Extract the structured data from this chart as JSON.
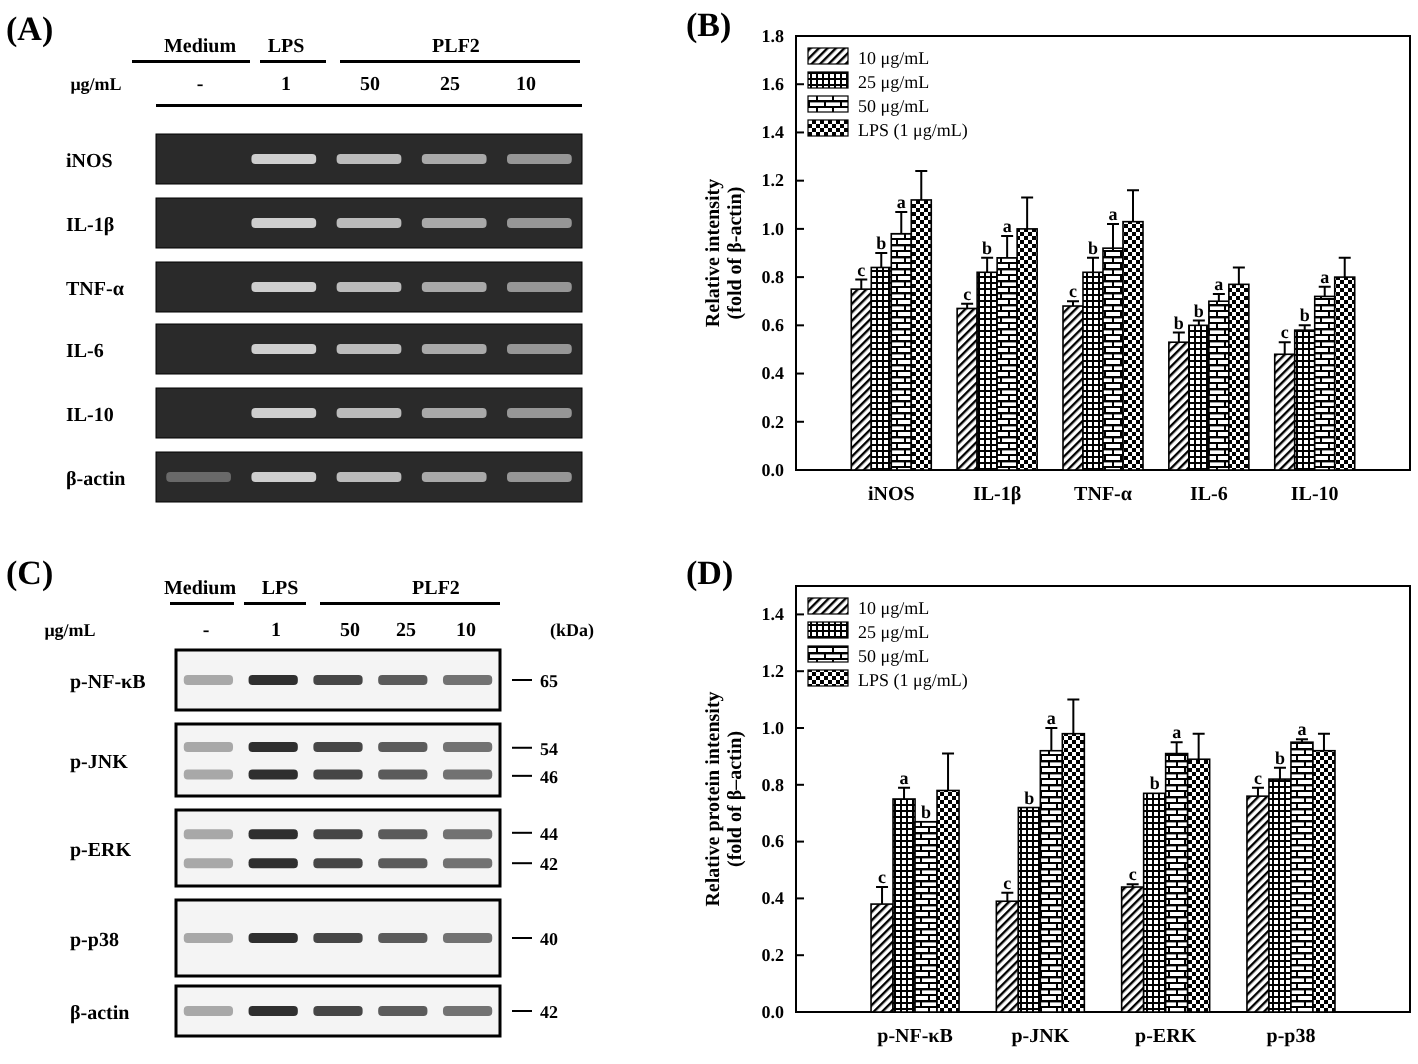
{
  "chart_data": [
    {
      "type": "other",
      "title": "(A)",
      "annotations": [
        "Medium",
        "LPS",
        "PLF2",
        "μg/mL",
        "-",
        "1",
        "50",
        "25",
        "10",
        "iNOS",
        "IL-1β",
        "TNF-α",
        "IL-6",
        "IL-10",
        "β-actin"
      ]
    },
    {
      "type": "bar",
      "title": "(B)",
      "ylabel": "Relative intensity\n(fold of β-actin)",
      "categories": [
        "iNOS",
        "IL-1β",
        "TNF-α",
        "IL-6",
        "IL-10"
      ],
      "series": [
        {
          "name": "10 μg/mL",
          "color": "#000000",
          "values": [
            0.75,
            0.67,
            0.68,
            0.53,
            0.48
          ],
          "errors": [
            [
              0.75,
              0.79
            ],
            [
              0.67,
              0.69
            ],
            [
              0.68,
              0.7
            ],
            [
              0.53,
              0.57
            ],
            [
              0.48,
              0.53
            ]
          ],
          "value_labels": [
            "c",
            "c",
            "c",
            "b",
            "c"
          ]
        },
        {
          "name": "25 μg/mL",
          "color": "#000000",
          "values": [
            0.84,
            0.82,
            0.82,
            0.6,
            0.58
          ],
          "errors": [
            [
              0.84,
              0.9
            ],
            [
              0.82,
              0.88
            ],
            [
              0.82,
              0.88
            ],
            [
              0.6,
              0.62
            ],
            [
              0.58,
              0.6
            ]
          ],
          "value_labels": [
            "b",
            "b",
            "b",
            "b",
            "b"
          ]
        },
        {
          "name": "50 μg/mL",
          "color": "#000000",
          "values": [
            0.98,
            0.88,
            0.92,
            0.7,
            0.72
          ],
          "errors": [
            [
              0.98,
              1.07
            ],
            [
              0.88,
              0.97
            ],
            [
              0.92,
              1.02
            ],
            [
              0.7,
              0.73
            ],
            [
              0.72,
              0.76
            ]
          ],
          "value_labels": [
            "a",
            "a",
            "a",
            "a",
            "a"
          ]
        },
        {
          "name": "LPS (1 μg/mL)",
          "color": "#000000",
          "values": [
            1.12,
            1.0,
            1.03,
            0.77,
            0.8
          ],
          "errors": [
            [
              1.12,
              1.24
            ],
            [
              1.0,
              1.13
            ],
            [
              1.03,
              1.16
            ],
            [
              0.77,
              0.84
            ],
            [
              0.8,
              0.88
            ]
          ]
        }
      ],
      "ylim": [
        0,
        1.8
      ],
      "yticks": [
        {
          "value": 0,
          "label": "0.0"
        },
        {
          "value": 0.2,
          "label": "0.2"
        },
        {
          "value": 0.4,
          "label": "0.4"
        },
        {
          "value": 0.6,
          "label": "0.6"
        },
        {
          "value": 0.8,
          "label": "0.8"
        },
        {
          "value": 1,
          "label": "1.0"
        },
        {
          "value": 1.2,
          "label": "1.2"
        },
        {
          "value": 1.4,
          "label": "1.4"
        },
        {
          "value": 1.6,
          "label": "1.6"
        },
        {
          "value": 1.8,
          "label": "1.8"
        }
      ],
      "legend": "top left"
    },
    {
      "type": "other",
      "title": "(C)",
      "annotations": [
        "Medium",
        "LPS",
        "PLF2",
        "μg/mL",
        "-",
        "1",
        "50",
        "25",
        "10",
        "(kDa)",
        "p-NF-κB",
        "p-JNK",
        "p-ERK",
        "p-p38",
        "β-actin",
        "65",
        "54",
        "46",
        "44",
        "42",
        "40",
        "42"
      ]
    },
    {
      "type": "bar",
      "title": "(D)",
      "ylabel": "Relative protein intensity\n(fold of β–actin)",
      "categories": [
        "p-NF-κB",
        "p-JNK",
        "p-ERK",
        "p-p38"
      ],
      "series": [
        {
          "name": "10 μg/mL",
          "color": "#000000",
          "values": [
            0.38,
            0.39,
            0.44,
            0.76
          ],
          "errors": [
            [
              0.38,
              0.44
            ],
            [
              0.39,
              0.42
            ],
            [
              0.44,
              0.45
            ],
            [
              0.76,
              0.79
            ]
          ],
          "value_labels": [
            "c",
            "c",
            "c",
            "c"
          ]
        },
        {
          "name": "25 μg/mL",
          "color": "#000000",
          "values": [
            0.75,
            0.72,
            0.77,
            0.82
          ],
          "errors": [
            [
              0.75,
              0.79
            ],
            null,
            null,
            [
              0.82,
              0.86
            ]
          ],
          "value_labels": [
            "a",
            "b",
            "b",
            "b"
          ]
        },
        {
          "name": "50 μg/mL",
          "color": "#000000",
          "values": [
            0.67,
            0.92,
            0.91,
            0.95
          ],
          "errors": [
            null,
            [
              0.92,
              1.0
            ],
            [
              0.91,
              0.95
            ],
            [
              0.95,
              0.96
            ]
          ],
          "value_labels": [
            "b",
            "a",
            "a",
            "a"
          ]
        },
        {
          "name": "LPS (1 μg/mL)",
          "color": "#000000",
          "values": [
            0.78,
            0.98,
            0.89,
            0.92
          ],
          "errors": [
            [
              0.78,
              0.91
            ],
            [
              0.98,
              1.1
            ],
            [
              0.89,
              0.98
            ],
            [
              0.92,
              0.98
            ]
          ]
        }
      ],
      "ylim": [
        0,
        1.5
      ],
      "yticks": [
        {
          "value": 0,
          "label": "0.0"
        },
        {
          "value": 0.2,
          "label": "0.2"
        },
        {
          "value": 0.4,
          "label": "0.4"
        },
        {
          "value": 0.6,
          "label": "0.6"
        },
        {
          "value": 0.8,
          "label": "0.8"
        },
        {
          "value": 1,
          "label": "1.0"
        },
        {
          "value": 1.2,
          "label": "1.2"
        },
        {
          "value": 1.4,
          "label": "1.4"
        }
      ],
      "legend": "top left"
    }
  ]
}
